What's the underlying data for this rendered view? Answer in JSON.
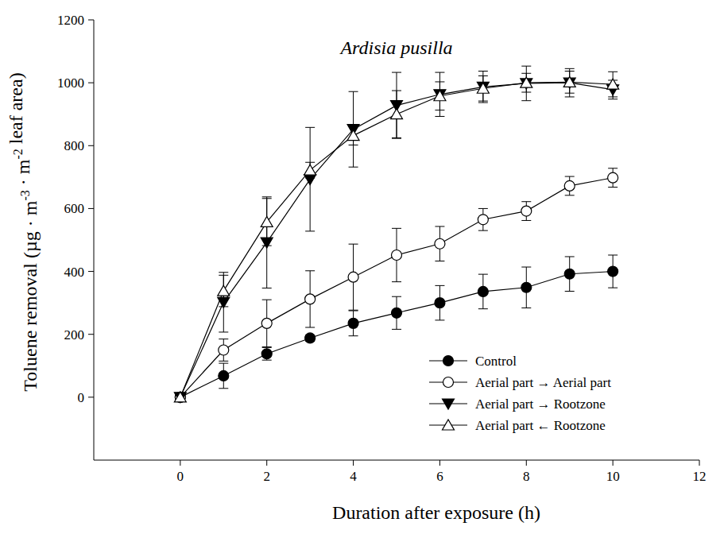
{
  "chart_data": {
    "type": "line",
    "title": "Ardisia pusilla",
    "x_label": "Duration after exposure (h)",
    "y_label": "Toluene removal (µg · m-3 · m-2 leaf area)",
    "xlim": [
      -2,
      12
    ],
    "xticks": [
      0,
      2,
      4,
      6,
      8,
      10,
      12
    ],
    "ylim": [
      -200,
      1200
    ],
    "yticks": [
      0,
      200,
      400,
      600,
      800,
      1000,
      1200
    ],
    "grid": false,
    "legend": "lower right",
    "x": [
      0,
      1,
      2,
      3,
      4,
      5,
      6,
      7,
      8,
      9,
      10
    ],
    "series": [
      {
        "name": "Control",
        "color": "#000000",
        "marker": "circle",
        "line_style": "solid",
        "values": [
          0,
          68,
          138,
          188,
          235,
          268,
          300,
          336,
          349,
          392,
          400
        ],
        "errors": [
          0,
          40,
          20,
          10,
          40,
          52,
          55,
          55,
          65,
          55,
          52
        ]
      },
      {
        "name": "Aerial part → Aerial part",
        "color": "#000000",
        "marker": "open-circle",
        "line_style": "solid",
        "values": [
          0,
          150,
          235,
          312,
          382,
          452,
          488,
          565,
          592,
          672,
          698
        ],
        "errors": [
          0,
          35,
          75,
          90,
          105,
          85,
          55,
          35,
          30,
          30,
          30
        ]
      },
      {
        "name": "Aerial part → Rootzone",
        "color": "#000000",
        "marker": "triangle-down",
        "line_style": "solid",
        "values": [
          0,
          302,
          492,
          693,
          852,
          928,
          963,
          987,
          998,
          1000,
          978
        ],
        "errors": [
          0,
          95,
          145,
          165,
          120,
          105,
          70,
          50,
          55,
          45,
          30
        ]
      },
      {
        "name": "Aerial part ← Rootzone",
        "color": "#000000",
        "marker": "open-triangle-up",
        "line_style": "solid",
        "values": [
          0,
          338,
          557,
          722,
          832,
          900,
          958,
          982,
          1000,
          1002,
          995
        ],
        "errors": [
          0,
          50,
          75,
          25,
          30,
          75,
          45,
          40,
          30,
          35,
          40
        ]
      }
    ]
  }
}
